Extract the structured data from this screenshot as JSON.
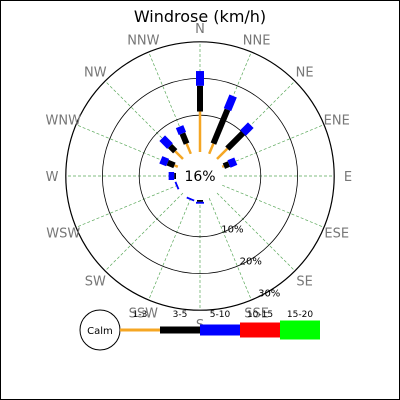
{
  "chart_data": {
    "type": "windrose",
    "title": "Windrose (km/h)",
    "directions": [
      "N",
      "NNE",
      "NE",
      "ENE",
      "E",
      "ESE",
      "SE",
      "SSE",
      "S",
      "SSW",
      "SW",
      "WSW",
      "W",
      "WNW",
      "NW",
      "NNW"
    ],
    "ring_labels": [
      "10%",
      "20%",
      "30%"
    ],
    "ring_values": [
      10,
      20,
      30
    ],
    "calm_label": "16%",
    "calm_percent": 16,
    "legend_calm_label": "Calm",
    "speed_bins": [
      {
        "name": "1-3",
        "color": "#f5a623"
      },
      {
        "name": "3-5",
        "color": "#000000"
      },
      {
        "name": "5-10",
        "color": "#0000ff"
      },
      {
        "name": "10-15",
        "color": "#ff0000"
      },
      {
        "name": "15-20",
        "color": "#00ff00"
      }
    ],
    "series_cumulative_percent": [
      [
        11,
        18,
        22,
        0,
        0
      ],
      [
        3,
        13,
        17,
        0,
        0
      ],
      [
        4,
        10,
        13,
        0,
        0
      ],
      [
        0.5,
        2,
        4,
        0,
        0
      ],
      [
        0,
        0,
        0,
        0,
        0
      ],
      [
        0,
        0,
        0,
        0,
        0
      ],
      [
        0,
        0,
        0,
        0,
        0
      ],
      [
        0,
        0,
        0,
        0,
        0
      ],
      [
        0,
        0.5,
        1,
        0,
        0
      ],
      [
        0,
        0,
        0.5,
        0,
        0
      ],
      [
        0,
        0,
        0,
        0,
        0
      ],
      [
        0,
        0,
        0.5,
        0,
        0
      ],
      [
        0,
        0.5,
        2,
        0,
        0
      ],
      [
        1,
        3,
        5,
        0,
        0
      ],
      [
        3,
        5,
        8,
        0,
        0
      ],
      [
        3,
        6,
        8,
        0,
        0
      ]
    ],
    "grid": true
  }
}
